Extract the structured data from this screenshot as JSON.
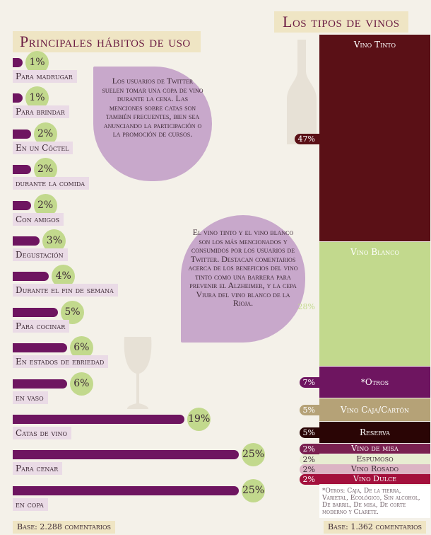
{
  "colors": {
    "background": "#f4f1e9",
    "bar": "#6e1560",
    "label_bg": "#eadbe6",
    "circle": "#c2d98d",
    "bubble": "#c8a8cb",
    "banner": "#efe5c4",
    "title": "#6b1c43"
  },
  "chart_data": [
    {
      "type": "bar",
      "title": "Principales hábitos de uso",
      "orientation": "horizontal",
      "categories": [
        "Para madrugar",
        "Para brindar",
        "En un Cóctel",
        "durante la comida",
        "Con amigos",
        "Degustación",
        "Durante el fin de semana",
        "Para cocinar",
        "En estados de ebriedad",
        "en vaso",
        "Catas de vino",
        "Para cenar",
        "en copa"
      ],
      "values": [
        1,
        1,
        2,
        2,
        2,
        3,
        4,
        5,
        6,
        6,
        19,
        25,
        25
      ],
      "value_labels": [
        "1%",
        "1%",
        "2%",
        "2%",
        "2%",
        "3%",
        "4%",
        "5%",
        "6%",
        "6%",
        "19%",
        "25%",
        "25%"
      ],
      "unit": "%",
      "base": "Base: 2.288 comentarios"
    },
    {
      "type": "stacked-bar",
      "title": "Los tipos de vinos",
      "categories": [
        "Vino Tinto",
        "Vino Blanco",
        "*Otros",
        "Vino Caja/Cartón",
        "Reserva",
        "Vino de misa",
        "Espumoso",
        "Vino Rosado",
        "Vino Dulce"
      ],
      "values": [
        47,
        28,
        7,
        5,
        5,
        2,
        2,
        2,
        2
      ],
      "value_labels": [
        "47%",
        "28%",
        "7%",
        "5%",
        "5%",
        "2%",
        "2%",
        "2%",
        "2%"
      ],
      "colors": [
        "#5a1016",
        "#c2d98d",
        "#6e1560",
        "#b5a277",
        "#2a0505",
        "#7a2050",
        "#e8edd2",
        "#dcb4c4",
        "#a3103c"
      ],
      "label_colors": [
        "#ffffff",
        "#ffffff",
        "#ffffff",
        "#ffffff",
        "#ffffff",
        "#ffffff",
        "#3d2a35",
        "#3d2a35",
        "#ffffff"
      ],
      "unit": "%",
      "footnote": "*Otros: Caja, De la tierra, Varietal, Ecológico, Sin alcohol, De barril, De misa, De corte moderno y Clarete.",
      "base": "Base: 1.362 comentarios"
    }
  ],
  "callouts": {
    "habits": "Los usuarios de Twitter suelen tomar una copa de vino durante la cena. Las menciones sobre catas son también frecuentes, bien sea anunciando la participación o la promoción de cursos.",
    "types": "El vino tinto y el vino blanco son los más mencionados y consumidos por los usuarios de Twitter. Destacan comentarios acerca de los beneficios del vino tinto como una barrera para prevenir el Alzheimer, y la cepa Viura del vino blanco de la Rioja."
  },
  "icons": [
    "wine-glass-icon",
    "wine-bottle-icon"
  ]
}
